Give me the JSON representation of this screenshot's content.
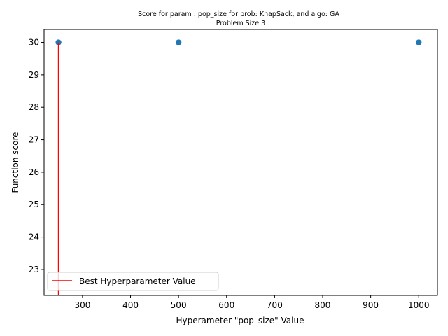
{
  "chart_data": {
    "type": "scatter",
    "title": "Score for param : pop_size for prob: KnapSack, and algo: GA",
    "subtitle": "Problem Size 3",
    "xlabel": "Hyperameter \"pop_size\" Value",
    "ylabel": "Function score",
    "xlim": [
      220,
      1039
    ],
    "ylim": [
      22.2,
      30.4
    ],
    "xticks": [
      300,
      400,
      500,
      600,
      700,
      800,
      900,
      1000
    ],
    "yticks": [
      23,
      24,
      25,
      26,
      27,
      28,
      29,
      30
    ],
    "grid": false,
    "legend_position": "lower-left",
    "series": [
      {
        "type": "scatter",
        "color": "#1f77b4",
        "x": [
          250,
          500,
          1000
        ],
        "y": [
          30,
          30,
          30
        ]
      },
      {
        "name": "Best Hyperparameter Value",
        "type": "vline",
        "color": "#ff0000",
        "x": 250,
        "ymin": 22.2,
        "ymax": 30
      }
    ]
  }
}
